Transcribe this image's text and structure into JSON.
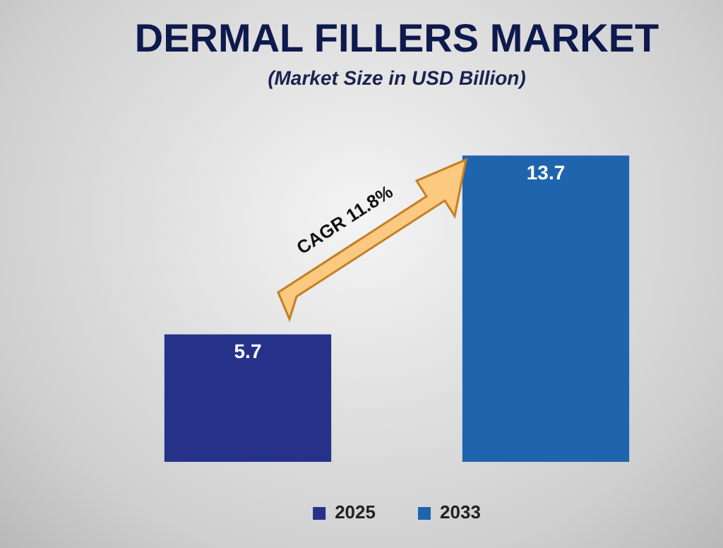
{
  "chart_data": {
    "type": "bar",
    "title": "DERMAL FILLERS MARKET",
    "subtitle": "(Market Size in USD Billion)",
    "categories": [
      null,
      null
    ],
    "series": [
      {
        "name": "2025",
        "color": "#26328a",
        "values": [
          5.7,
          null
        ]
      },
      {
        "name": "2033",
        "color": "#1f65ad",
        "values": [
          null,
          13.7
        ]
      }
    ],
    "stacked": true,
    "data_labels": true,
    "legend": "bottom",
    "tick_labels": false,
    "annotations": [
      "CAGR 11.8%"
    ]
  }
}
